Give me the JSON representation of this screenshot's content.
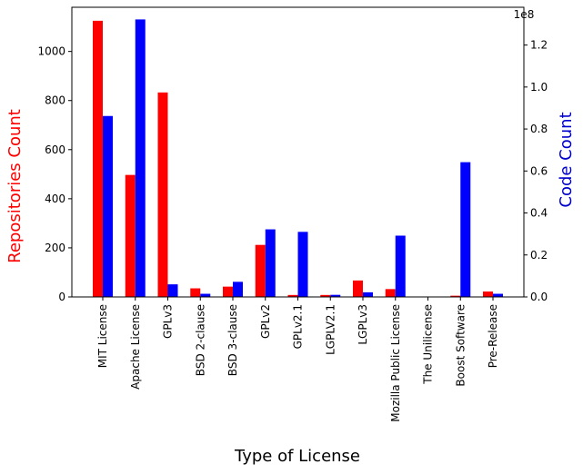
{
  "chart_data": {
    "type": "bar",
    "xlabel": "Type of License",
    "ylabel_left": "Repositories Count",
    "ylabel_right": "Code Count",
    "right_axis_multiplier": "1e8",
    "categories": [
      "MIT License",
      "Apache License",
      "GPLv3",
      "BSD 2-clause",
      "BSD 3-clause",
      "GPLv2",
      "GPLv2.1",
      "LGPLV2.1",
      "LGPLv3",
      "Mozilla Public License",
      "The Unilicense",
      "Boost Software",
      "Pre-Release"
    ],
    "left_ticks": [
      "0",
      "200",
      "400",
      "600",
      "800",
      "1000"
    ],
    "right_ticks": [
      "0.0",
      "0.2",
      "0.4",
      "0.6",
      "0.8",
      "1.0",
      "1.2"
    ],
    "ylim_left": [
      0,
      1180
    ],
    "ylim_right": [
      0,
      1.38
    ],
    "series": [
      {
        "name": "Repositories Count",
        "axis": "left",
        "color": "#ff0000",
        "values": [
          1125,
          497,
          833,
          35,
          42,
          212,
          8,
          8,
          67,
          32,
          0,
          5,
          22
        ]
      },
      {
        "name": "Code Count",
        "axis": "right",
        "color": "#0000ff",
        "values": [
          0.862,
          1.322,
          0.06,
          0.015,
          0.072,
          0.322,
          0.31,
          0.01,
          0.022,
          0.292,
          0,
          0.642,
          0.015
        ]
      }
    ],
    "colors": {
      "left_label": "#ff0000",
      "right_label": "#0000cc"
    }
  }
}
